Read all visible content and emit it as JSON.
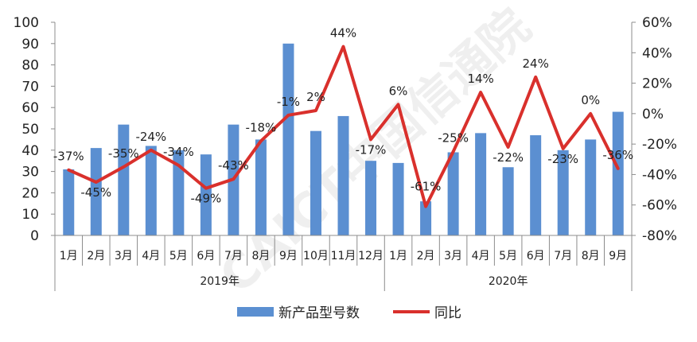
{
  "watermark": "CAICT中国信通院",
  "chart_data": {
    "type": "bar+line",
    "categories": [
      "1月",
      "2月",
      "3月",
      "4月",
      "5月",
      "6月",
      "7月",
      "8月",
      "9月",
      "10月",
      "11月",
      "12月",
      "1月",
      "2月",
      "3月",
      "4月",
      "5月",
      "6月",
      "7月",
      "8月",
      "9月"
    ],
    "groups": [
      {
        "label": "2019年",
        "start": 0,
        "end": 11
      },
      {
        "label": "2020年",
        "start": 12,
        "end": 20
      }
    ],
    "series": [
      {
        "name": "新产品型号数",
        "type": "bar",
        "axis": "left",
        "color": "#5b8fd1",
        "values": [
          31,
          41,
          52,
          42,
          40,
          38,
          52,
          45,
          90,
          49,
          56,
          35,
          34,
          16,
          39,
          48,
          32,
          47,
          40,
          45,
          58
        ]
      },
      {
        "name": "同比",
        "type": "line",
        "axis": "right",
        "color": "#d9302c",
        "values": [
          -37,
          -45,
          -35,
          -24,
          -34,
          -49,
          -43,
          -18,
          -1,
          2,
          44,
          -17,
          6,
          -61,
          -25,
          14,
          -22,
          24,
          -23,
          0,
          -36
        ],
        "labels": [
          "-37%",
          "-45%",
          "-35%",
          "-24%",
          "-34%",
          "-49%",
          "-43%",
          "-18%",
          "-1%",
          "2%",
          "44%",
          "-17%",
          "6%",
          "-61%",
          "-25%",
          "14%",
          "-22%",
          "24%",
          "-23%",
          "0%",
          "-36%"
        ]
      }
    ],
    "y_left": {
      "min": 0,
      "max": 100,
      "ticks": [
        "0",
        "10",
        "20",
        "30",
        "40",
        "50",
        "60",
        "70",
        "80",
        "90",
        "100"
      ]
    },
    "y_right": {
      "min": -80,
      "max": 60,
      "ticks": [
        "-80%",
        "-60%",
        "-40%",
        "-20%",
        "0%",
        "20%",
        "40%",
        "60%"
      ]
    },
    "legend_position": "bottom",
    "grid": false
  }
}
